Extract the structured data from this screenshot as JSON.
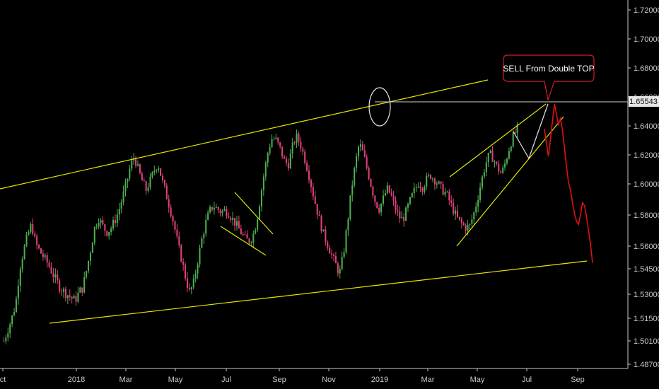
{
  "chart_data": {
    "type": "candlestick",
    "title": "",
    "xlabel": "",
    "ylabel": "",
    "x_ticks": [
      "ct",
      "2018",
      "Mar",
      "May",
      "Jul",
      "Sep",
      "Nov",
      "2019",
      "Mar",
      "May",
      "Jul",
      "Sep"
    ],
    "y_ticks": [
      "1.72000",
      "1.70000",
      "1.68000",
      "1.66000",
      "1.64000",
      "1.62000",
      "1.60000",
      "1.58000",
      "1.56000",
      "1.54500",
      "1.53000",
      "1.51500",
      "1.50100",
      "1.48700"
    ],
    "current_price": "1.65543",
    "annotation": "SELL From Double TOP",
    "colors": {
      "background": "#000000",
      "bull": "#4caf50",
      "bear": "#e0437a",
      "trendline": "#e6e600",
      "projection": "#e01010",
      "price_line": "#d0d0d0"
    },
    "series": [
      {
        "name": "",
        "values": [
          1.501,
          1.508,
          1.515,
          1.524,
          1.545,
          1.557,
          1.567,
          1.574,
          1.562,
          1.557,
          1.553,
          1.549,
          1.544,
          1.539,
          1.535,
          1.532,
          1.53,
          1.528,
          1.526,
          1.531,
          1.534,
          1.545,
          1.558,
          1.572,
          1.578,
          1.573,
          1.569,
          1.571,
          1.576,
          1.582,
          1.591,
          1.6,
          1.612,
          1.619,
          1.61,
          1.602,
          1.596,
          1.602,
          1.609,
          1.614,
          1.603,
          1.594,
          1.585,
          1.575,
          1.562,
          1.551,
          1.54,
          1.531,
          1.536,
          1.549,
          1.563,
          1.574,
          1.582,
          1.586,
          1.584,
          1.582,
          1.583,
          1.581,
          1.577,
          1.573,
          1.569,
          1.565,
          1.563,
          1.566,
          1.576,
          1.592,
          1.609,
          1.624,
          1.632,
          1.63,
          1.624,
          1.616,
          1.613,
          1.625,
          1.633,
          1.628,
          1.619,
          1.609,
          1.597,
          1.586,
          1.576,
          1.567,
          1.561,
          1.554,
          1.548,
          1.542,
          1.555,
          1.575,
          1.596,
          1.614,
          1.628,
          1.621,
          1.61,
          1.599,
          1.589,
          1.584,
          1.59,
          1.597,
          1.593,
          1.585,
          1.579,
          1.577,
          1.583,
          1.59,
          1.596,
          1.601,
          1.598,
          1.603,
          1.606,
          1.603,
          1.6,
          1.596,
          1.594,
          1.588,
          1.582,
          1.577,
          1.574,
          1.572,
          1.573,
          1.581,
          1.591,
          1.603,
          1.614,
          1.621,
          1.617,
          1.611,
          1.607,
          1.615,
          1.625,
          1.633,
          1.638
        ]
      },
      {
        "name": "",
        "values": [
          1.638,
          1.628,
          1.619,
          1.631,
          1.643,
          1.655,
          1.648,
          1.641,
          1.645,
          1.637,
          1.625,
          1.612,
          1.601,
          1.596,
          1.588,
          1.581,
          1.576,
          1.574,
          1.58,
          1.588,
          1.586,
          1.579,
          1.57,
          1.561,
          1.549
        ]
      }
    ],
    "ylim": [
      1.487,
      1.725
    ]
  }
}
